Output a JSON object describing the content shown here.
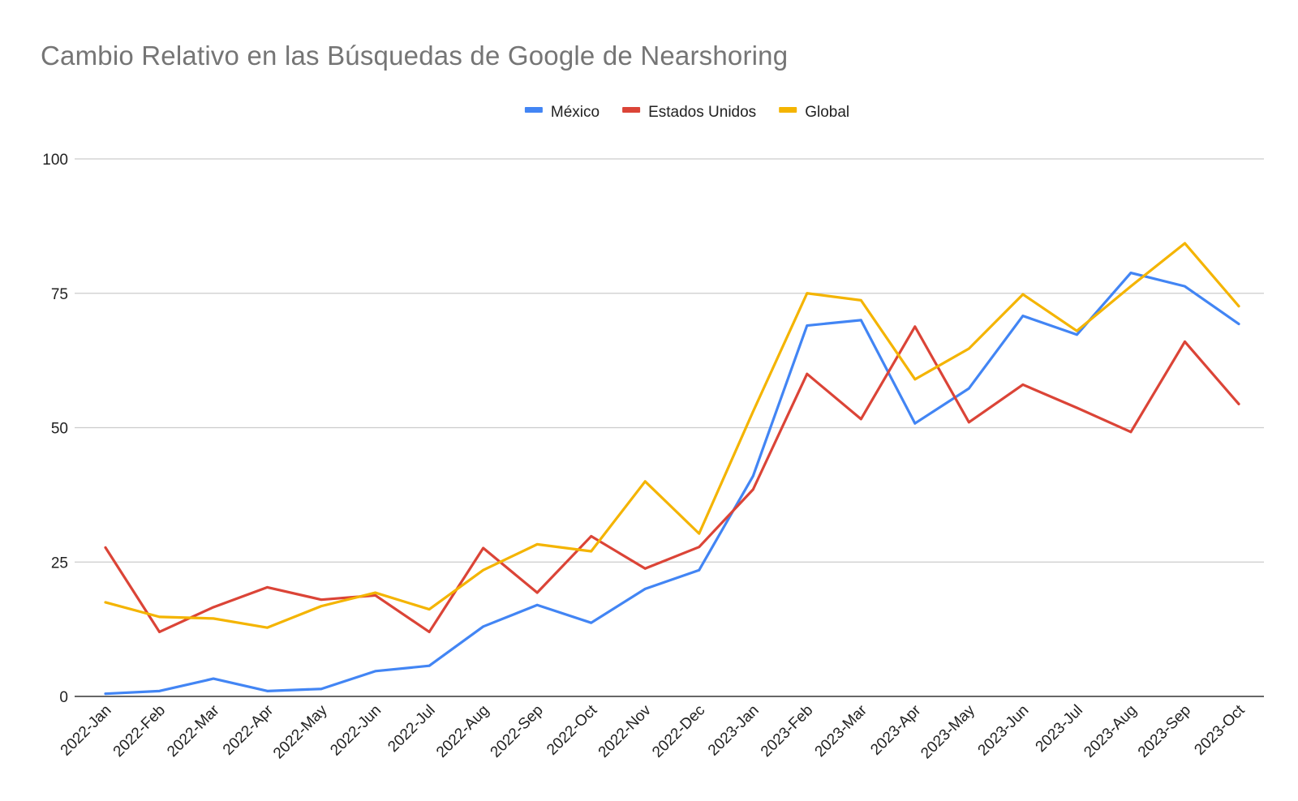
{
  "chart_data": {
    "type": "line",
    "title": "Cambio Relativo en las Búsquedas de Google de Nearshoring",
    "xlabel": "",
    "ylabel": "",
    "ylim": [
      0,
      100
    ],
    "yticks": [
      "0",
      "25",
      "50",
      "75",
      "100"
    ],
    "ytick_values": [
      0,
      25,
      50,
      75,
      100
    ],
    "grid": true,
    "legend_position": "top-center",
    "categories": [
      "2022-Jan",
      "2022-Feb",
      "2022-Mar",
      "2022-Apr",
      "2022-May",
      "2022-Jun",
      "2022-Jul",
      "2022-Aug",
      "2022-Sep",
      "2022-Oct",
      "2022-Nov",
      "2022-Dec",
      "2023-Jan",
      "2023-Feb",
      "2023-Mar",
      "2023-Apr",
      "2023-May",
      "2023-Jun",
      "2023-Jul",
      "2023-Aug",
      "2023-Sep",
      "2023-Oct"
    ],
    "series": [
      {
        "name": "México",
        "color": "#4285F4",
        "values": [
          0.5,
          1,
          3.3,
          1,
          1.4,
          4.7,
          5.7,
          13,
          17,
          13.7,
          20,
          23.5,
          41,
          69,
          70,
          50.8,
          57.3,
          70.8,
          67.3,
          78.8,
          76.3,
          69.3
        ]
      },
      {
        "name": "Estados Unidos",
        "color": "#DB4437",
        "values": [
          27.7,
          12,
          16.6,
          20.3,
          18,
          18.8,
          12,
          27.6,
          19.3,
          29.8,
          23.8,
          27.8,
          38.5,
          60,
          51.6,
          68.8,
          51,
          58,
          53.7,
          49.2,
          66,
          54.4
        ]
      },
      {
        "name": "Global",
        "color": "#F4B400",
        "values": [
          17.5,
          14.8,
          14.5,
          12.8,
          16.8,
          19.3,
          16.2,
          23.5,
          28.3,
          27,
          40,
          30.3,
          53,
          75,
          73.7,
          59,
          64.7,
          74.8,
          68,
          76.3,
          84.3,
          72.6
        ]
      }
    ]
  }
}
